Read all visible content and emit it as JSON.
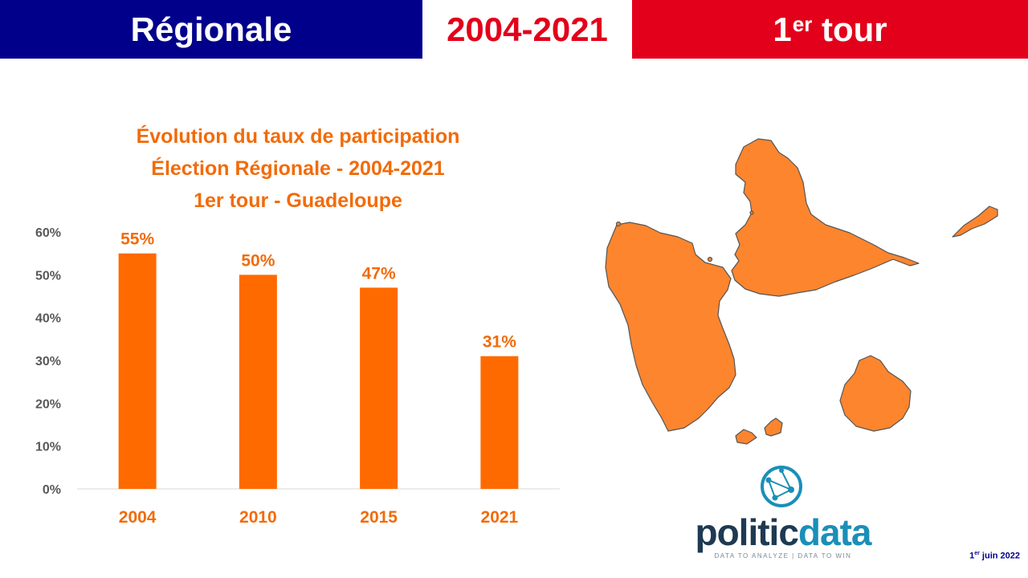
{
  "header": {
    "left": "Régionale",
    "center": "2004-2021",
    "right_main": "1",
    "right_sup": "er",
    "right_rest": " tour",
    "colors": {
      "blue": "#00008b",
      "red": "#e3001b"
    }
  },
  "chart_data": {
    "type": "bar",
    "title_lines": [
      "Évolution du taux de participation",
      "Élection Régionale - 2004-2021",
      "1er tour - Guadeloupe"
    ],
    "categories": [
      "2004",
      "2010",
      "2015",
      "2021"
    ],
    "values": [
      55,
      50,
      47,
      31
    ],
    "data_labels": [
      "55%",
      "50%",
      "47%",
      "31%"
    ],
    "y_ticks": [
      "0%",
      "10%",
      "20%",
      "30%",
      "40%",
      "50%",
      "60%"
    ],
    "ylim": [
      0,
      60
    ],
    "grid": false,
    "color": "#ff6a00"
  },
  "map": {
    "region": "Guadeloupe",
    "fill": "#fd852e"
  },
  "logo": {
    "word_a": "politic",
    "word_b": "data",
    "tagline": "DATA TO ANALYZE | DATA TO WIN"
  },
  "date": {
    "day": "1",
    "sup": "er",
    "rest": " juin 2022"
  }
}
